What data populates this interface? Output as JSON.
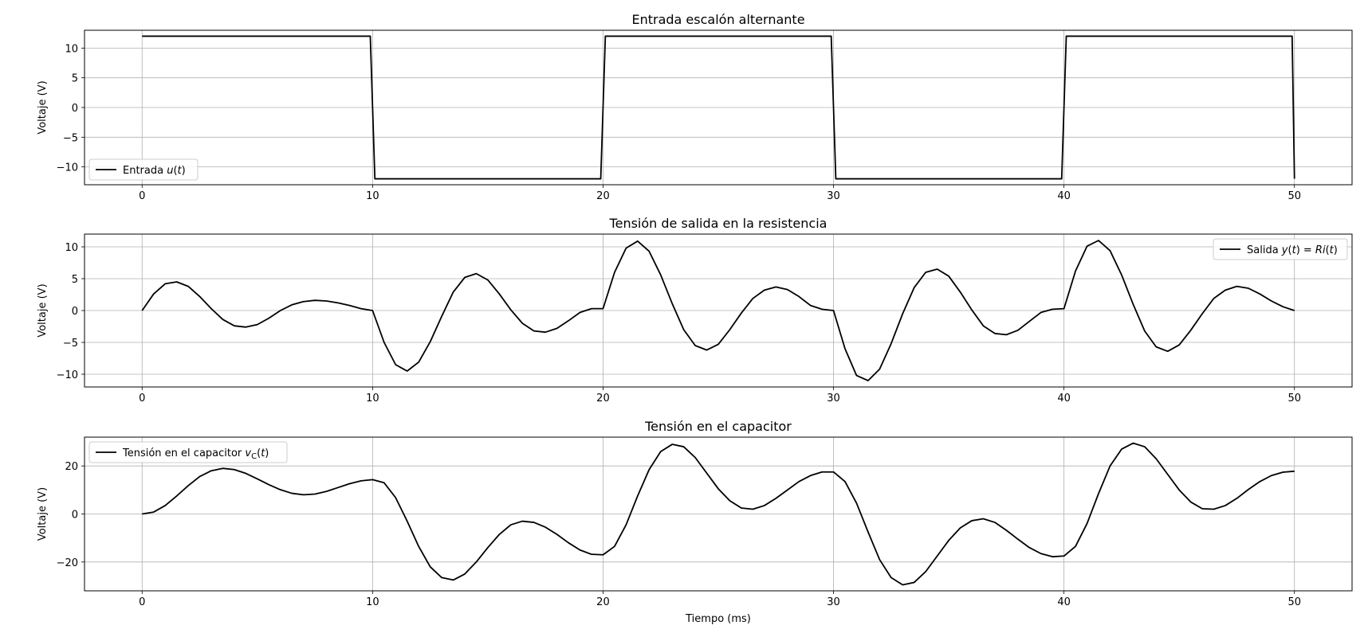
{
  "chart_data": [
    {
      "type": "line",
      "title": "Entrada escalón alternante",
      "xlabel": "",
      "ylabel": "Voltaje (V)",
      "xlim": [
        -2.5,
        52.5
      ],
      "ylim": [
        -13,
        13
      ],
      "xticks": [
        0,
        10,
        20,
        30,
        40,
        50
      ],
      "yticks": [
        10,
        5,
        0,
        -5,
        -10
      ],
      "ytick_labels": [
        "10",
        "5",
        "0",
        "−5",
        "−10"
      ],
      "grid": true,
      "legend": "lower-left",
      "series": [
        {
          "name": "Entrada u(t)",
          "x": [
            0,
            9.9,
            10.1,
            19.9,
            20.1,
            29.9,
            30.1,
            39.9,
            40.1,
            49.9,
            50
          ],
          "y": [
            12,
            12,
            -12,
            -12,
            12,
            12,
            -12,
            -12,
            12,
            12,
            -12
          ]
        }
      ]
    },
    {
      "type": "line",
      "title": "Tensión de salida en la resistencia",
      "xlabel": "",
      "ylabel": "Voltaje (V)",
      "xlim": [
        -2.5,
        52.5
      ],
      "ylim": [
        -12,
        12
      ],
      "xticks": [
        0,
        10,
        20,
        30,
        40,
        50
      ],
      "yticks": [
        10,
        5,
        0,
        -5,
        -10
      ],
      "ytick_labels": [
        "10",
        "5",
        "0",
        "−5",
        "−10"
      ],
      "grid": true,
      "legend": "upper-right",
      "series": [
        {
          "name": "Salida y(t) = Ri(t)",
          "x": [
            0,
            0.5,
            1,
            1.5,
            2,
            2.5,
            3,
            3.5,
            4,
            4.5,
            5,
            5.5,
            6,
            6.5,
            7,
            7.5,
            8,
            8.5,
            9,
            9.5,
            10,
            10.5,
            11,
            11.5,
            12,
            12.5,
            13,
            13.5,
            14,
            14.5,
            15,
            15.5,
            16,
            16.5,
            17,
            17.5,
            18,
            18.5,
            19,
            19.5,
            20,
            20.5,
            21,
            21.5,
            22,
            22.5,
            23,
            23.5,
            24,
            24.5,
            25,
            25.5,
            26,
            26.5,
            27,
            27.5,
            28,
            28.5,
            29,
            29.5,
            30,
            30.5,
            31,
            31.5,
            32,
            32.5,
            33,
            33.5,
            34,
            34.5,
            35,
            35.5,
            36,
            36.5,
            37,
            37.5,
            38,
            38.5,
            39,
            39.5,
            40,
            40.5,
            41,
            41.5,
            42,
            42.5,
            43,
            43.5,
            44,
            44.5,
            45,
            45.5,
            46,
            46.5,
            47,
            47.5,
            48,
            48.5,
            49,
            49.5,
            50
          ],
          "y": [
            0,
            2.6,
            4.2,
            4.5,
            3.8,
            2.2,
            0.3,
            -1.4,
            -2.4,
            -2.6,
            -2.2,
            -1.2,
            0.0,
            0.9,
            1.4,
            1.6,
            1.5,
            1.2,
            0.8,
            0.3,
            0,
            -5.0,
            -8.5,
            -9.5,
            -8.1,
            -4.9,
            -0.9,
            2.9,
            5.2,
            5.8,
            4.8,
            2.6,
            0.1,
            -2.0,
            -3.2,
            -3.4,
            -2.8,
            -1.6,
            -0.3,
            0.3,
            0.3,
            6.0,
            9.8,
            10.9,
            9.3,
            5.6,
            1.1,
            -3.0,
            -5.5,
            -6.2,
            -5.3,
            -3.0,
            -0.4,
            1.9,
            3.2,
            3.7,
            3.3,
            2.2,
            0.8,
            0.2,
            0,
            -6.0,
            -10.2,
            -11.0,
            -9.2,
            -5.2,
            -0.5,
            3.6,
            6.0,
            6.5,
            5.4,
            2.9,
            0.1,
            -2.4,
            -3.6,
            -3.8,
            -3.1,
            -1.7,
            -0.3,
            0.2,
            0.3,
            6.2,
            10.1,
            11.0,
            9.4,
            5.6,
            1.0,
            -3.2,
            -5.7,
            -6.4,
            -5.4,
            -3.1,
            -0.5,
            1.9,
            3.2,
            3.8,
            3.5,
            2.6,
            1.5,
            0.6,
            0
          ]
        }
      ]
    },
    {
      "type": "line",
      "title": "Tensión en el capacitor",
      "xlabel": "Tiempo (ms)",
      "ylabel": "Voltaje (V)",
      "xlim": [
        -2.5,
        52.5
      ],
      "ylim": [
        -32,
        32
      ],
      "xticks": [
        0,
        10,
        20,
        30,
        40,
        50
      ],
      "yticks": [
        20,
        0,
        -20
      ],
      "ytick_labels": [
        "20",
        "0",
        "−20"
      ],
      "grid": true,
      "legend": "upper-left",
      "series": [
        {
          "name": "Tensión en el capacitor v_C(t)",
          "x": [
            0,
            0.5,
            1,
            1.5,
            2,
            2.5,
            3,
            3.5,
            4,
            4.5,
            5,
            5.5,
            6,
            6.5,
            7,
            7.5,
            8,
            8.5,
            9,
            9.5,
            10,
            10.5,
            11,
            11.5,
            12,
            12.5,
            13,
            13.5,
            14,
            14.5,
            15,
            15.5,
            16,
            16.5,
            17,
            17.5,
            18,
            18.5,
            19,
            19.5,
            20,
            20.5,
            21,
            21.5,
            22,
            22.5,
            23,
            23.5,
            24,
            24.5,
            25,
            25.5,
            26,
            26.5,
            27,
            27.5,
            28,
            28.5,
            29,
            29.5,
            30,
            30.5,
            31,
            31.5,
            32,
            32.5,
            33,
            33.5,
            34,
            34.5,
            35,
            35.5,
            36,
            36.5,
            37,
            37.5,
            38,
            38.5,
            39,
            39.5,
            40,
            40.5,
            41,
            41.5,
            42,
            42.5,
            43,
            43.5,
            44,
            44.5,
            45,
            45.5,
            46,
            46.5,
            47,
            47.5,
            48,
            48.5,
            49,
            49.5,
            50
          ],
          "y": [
            0,
            0.8,
            3.5,
            7.5,
            11.8,
            15.6,
            18.0,
            19.0,
            18.5,
            16.9,
            14.6,
            12.2,
            10.1,
            8.6,
            8.0,
            8.3,
            9.4,
            11.0,
            12.6,
            13.8,
            14.3,
            13.0,
            6.8,
            -3.0,
            -13.5,
            -22.0,
            -26.5,
            -27.5,
            -25.0,
            -20.0,
            -14.0,
            -8.5,
            -4.5,
            -3.0,
            -3.5,
            -5.5,
            -8.5,
            -12.0,
            -15.0,
            -16.8,
            -17.0,
            -13.5,
            -4.5,
            7.5,
            18.5,
            26.0,
            29.0,
            28.0,
            23.5,
            17.0,
            10.5,
            5.5,
            2.5,
            2.0,
            3.5,
            6.5,
            10.0,
            13.5,
            16.0,
            17.5,
            17.5,
            13.5,
            4.5,
            -7.5,
            -19.0,
            -26.5,
            -29.5,
            -28.5,
            -24.0,
            -17.5,
            -11.0,
            -5.8,
            -2.8,
            -2.0,
            -3.5,
            -6.8,
            -10.5,
            -14.0,
            -16.5,
            -17.8,
            -17.5,
            -13.5,
            -4.0,
            8.5,
            20.0,
            27.0,
            29.5,
            28.0,
            23.0,
            16.5,
            10.0,
            5.0,
            2.2,
            2.0,
            3.5,
            6.5,
            10.2,
            13.5,
            16.0,
            17.4,
            17.8
          ]
        }
      ]
    }
  ]
}
